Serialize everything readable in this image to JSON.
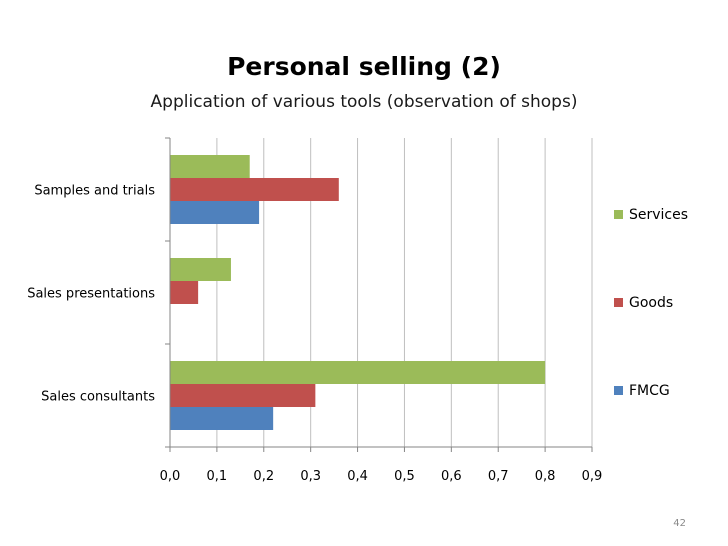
{
  "slide": {
    "title": "Personal selling (2)",
    "subtitle": "Application of various tools (observation of shops)",
    "page_number": "42"
  },
  "chart_data": {
    "type": "bar",
    "orientation": "horizontal",
    "categories": [
      "Samples and trials",
      "Sales presentations",
      "Sales consultants"
    ],
    "series": [
      {
        "name": "Services",
        "color": "#9BBB59",
        "values": [
          0.17,
          0.13,
          0.8
        ]
      },
      {
        "name": "Goods",
        "color": "#C0504D",
        "values": [
          0.36,
          0.06,
          0.31
        ]
      },
      {
        "name": "FMCG",
        "color": "#4F81BD",
        "values": [
          0.19,
          0.0,
          0.22
        ]
      }
    ],
    "xlim": [
      0,
      0.9
    ],
    "ticks": [
      0.0,
      0.1,
      0.2,
      0.3,
      0.4,
      0.5,
      0.6,
      0.7,
      0.8,
      0.9
    ],
    "tick_labels": [
      "0,0",
      "0,1",
      "0,2",
      "0,3",
      "0,4",
      "0,5",
      "0,6",
      "0,7",
      "0,8",
      "0,9"
    ],
    "grid": true,
    "legend_position": "right",
    "legend_order": [
      "Services",
      "Goods",
      "FMCG"
    ]
  }
}
